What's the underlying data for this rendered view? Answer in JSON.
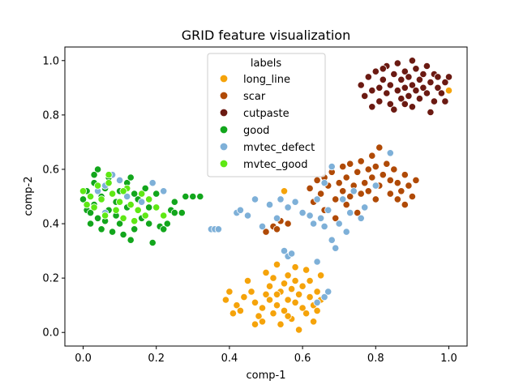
{
  "chart_data": {
    "type": "scatter",
    "title": "GRID feature visualization",
    "xlabel": "comp-1",
    "ylabel": "comp-2",
    "xlim": [
      -0.05,
      1.05
    ],
    "ylim": [
      -0.05,
      1.05
    ],
    "xticks": [
      0.0,
      0.2,
      0.4,
      0.6,
      0.8,
      1.0
    ],
    "xtick_labels": [
      "0.0",
      "0.2",
      "0.4",
      "0.6",
      "0.8",
      "1.0"
    ],
    "yticks": [
      0.0,
      0.2,
      0.4,
      0.6,
      0.8,
      1.0
    ],
    "ytick_labels": [
      "0.0",
      "0.2",
      "0.4",
      "0.6",
      "0.8",
      "1.0"
    ],
    "grid": false,
    "legend": {
      "title": "labels",
      "position": "upper-center"
    },
    "series": [
      {
        "name": "long_line",
        "color": "#f5a30a",
        "points": [
          [
            0.39,
            0.12
          ],
          [
            0.4,
            0.15
          ],
          [
            0.42,
            0.1
          ],
          [
            0.43,
            0.08
          ],
          [
            0.44,
            0.13
          ],
          [
            0.45,
            0.19
          ],
          [
            0.46,
            0.15
          ],
          [
            0.47,
            0.11
          ],
          [
            0.48,
            0.06
          ],
          [
            0.49,
            0.09
          ],
          [
            0.49,
            0.04
          ],
          [
            0.5,
            0.14
          ],
          [
            0.5,
            0.22
          ],
          [
            0.51,
            0.17
          ],
          [
            0.51,
            0.12
          ],
          [
            0.52,
            0.07
          ],
          [
            0.52,
            0.2
          ],
          [
            0.53,
            0.1
          ],
          [
            0.53,
            0.25
          ],
          [
            0.54,
            0.15
          ],
          [
            0.54,
            0.03
          ],
          [
            0.55,
            0.18
          ],
          [
            0.55,
            0.08
          ],
          [
            0.56,
            0.12
          ],
          [
            0.56,
            0.21
          ],
          [
            0.57,
            0.05
          ],
          [
            0.57,
            0.16
          ],
          [
            0.58,
            0.11
          ],
          [
            0.58,
            0.19
          ],
          [
            0.59,
            0.14
          ],
          [
            0.59,
            0.01
          ],
          [
            0.6,
            0.09
          ],
          [
            0.6,
            0.17
          ],
          [
            0.61,
            0.23
          ],
          [
            0.61,
            0.07
          ],
          [
            0.62,
            0.13
          ],
          [
            0.62,
            0.19
          ],
          [
            0.63,
            0.1
          ],
          [
            0.63,
            0.04
          ],
          [
            0.64,
            0.15
          ],
          [
            0.64,
            0.08
          ],
          [
            0.65,
            0.12
          ],
          [
            0.65,
            0.21
          ],
          [
            0.47,
            0.03
          ],
          [
            0.41,
            0.07
          ],
          [
            0.53,
            0.14
          ],
          [
            0.56,
            0.06
          ],
          [
            0.58,
            0.24
          ],
          [
            0.55,
            0.52
          ],
          [
            1.0,
            0.89
          ]
        ]
      },
      {
        "name": "scar",
        "color": "#b04a06",
        "points": [
          [
            0.5,
            0.37
          ],
          [
            0.52,
            0.39
          ],
          [
            0.53,
            0.38
          ],
          [
            0.54,
            0.41
          ],
          [
            0.56,
            0.4
          ],
          [
            0.62,
            0.53
          ],
          [
            0.63,
            0.48
          ],
          [
            0.64,
            0.56
          ],
          [
            0.65,
            0.51
          ],
          [
            0.66,
            0.57
          ],
          [
            0.67,
            0.54
          ],
          [
            0.68,
            0.59
          ],
          [
            0.69,
            0.49
          ],
          [
            0.7,
            0.55
          ],
          [
            0.71,
            0.52
          ],
          [
            0.71,
            0.61
          ],
          [
            0.72,
            0.47
          ],
          [
            0.72,
            0.57
          ],
          [
            0.73,
            0.5
          ],
          [
            0.73,
            0.62
          ],
          [
            0.74,
            0.54
          ],
          [
            0.75,
            0.44
          ],
          [
            0.75,
            0.59
          ],
          [
            0.76,
            0.51
          ],
          [
            0.76,
            0.63
          ],
          [
            0.77,
            0.55
          ],
          [
            0.77,
            0.46
          ],
          [
            0.78,
            0.6
          ],
          [
            0.78,
            0.52
          ],
          [
            0.79,
            0.65
          ],
          [
            0.79,
            0.57
          ],
          [
            0.8,
            0.49
          ],
          [
            0.8,
            0.61
          ],
          [
            0.81,
            0.54
          ],
          [
            0.81,
            0.68
          ],
          [
            0.82,
            0.58
          ],
          [
            0.83,
            0.62
          ],
          [
            0.84,
            0.51
          ],
          [
            0.84,
            0.56
          ],
          [
            0.85,
            0.6
          ],
          [
            0.86,
            0.49
          ],
          [
            0.86,
            0.55
          ],
          [
            0.87,
            0.52
          ],
          [
            0.88,
            0.58
          ],
          [
            0.88,
            0.47
          ],
          [
            0.89,
            0.54
          ],
          [
            0.9,
            0.5
          ],
          [
            0.91,
            0.56
          ],
          [
            0.66,
            0.45
          ],
          [
            0.69,
            0.42
          ]
        ]
      },
      {
        "name": "cutpaste",
        "color": "#6b1a12",
        "points": [
          [
            0.76,
            0.91
          ],
          [
            0.77,
            0.87
          ],
          [
            0.78,
            0.94
          ],
          [
            0.79,
            0.89
          ],
          [
            0.79,
            0.83
          ],
          [
            0.8,
            0.96
          ],
          [
            0.81,
            0.9
          ],
          [
            0.81,
            0.85
          ],
          [
            0.82,
            0.93
          ],
          [
            0.83,
            0.88
          ],
          [
            0.83,
            0.98
          ],
          [
            0.84,
            0.91
          ],
          [
            0.84,
            0.84
          ],
          [
            0.85,
            0.95
          ],
          [
            0.86,
            0.89
          ],
          [
            0.86,
            0.99
          ],
          [
            0.87,
            0.86
          ],
          [
            0.87,
            0.93
          ],
          [
            0.88,
            0.9
          ],
          [
            0.88,
            0.96
          ],
          [
            0.89,
            0.87
          ],
          [
            0.89,
            0.94
          ],
          [
            0.9,
            0.91
          ],
          [
            0.9,
            0.83
          ],
          [
            0.91,
            0.97
          ],
          [
            0.91,
            0.89
          ],
          [
            0.92,
            0.93
          ],
          [
            0.92,
            0.86
          ],
          [
            0.93,
            0.95
          ],
          [
            0.93,
            0.9
          ],
          [
            0.94,
            0.88
          ],
          [
            0.94,
            0.98
          ],
          [
            0.95,
            0.92
          ],
          [
            0.96,
            0.85
          ],
          [
            0.96,
            0.95
          ],
          [
            0.97,
            0.9
          ],
          [
            0.97,
            0.94
          ],
          [
            0.98,
            0.88
          ],
          [
            0.99,
            0.92
          ],
          [
            1.0,
            0.94
          ],
          [
            0.85,
            0.82
          ],
          [
            0.9,
            1.0
          ],
          [
            0.95,
            0.81
          ],
          [
            0.99,
            0.85
          ],
          [
            0.82,
            0.97
          ],
          [
            0.88,
            0.84
          ]
        ]
      },
      {
        "name": "good",
        "color": "#12a61c",
        "points": [
          [
            0.0,
            0.49
          ],
          [
            0.01,
            0.45
          ],
          [
            0.01,
            0.52
          ],
          [
            0.02,
            0.4
          ],
          [
            0.03,
            0.55
          ],
          [
            0.03,
            0.47
          ],
          [
            0.04,
            0.6
          ],
          [
            0.04,
            0.42
          ],
          [
            0.05,
            0.5
          ],
          [
            0.05,
            0.38
          ],
          [
            0.06,
            0.53
          ],
          [
            0.07,
            0.45
          ],
          [
            0.07,
            0.57
          ],
          [
            0.08,
            0.37
          ],
          [
            0.09,
            0.48
          ],
          [
            0.09,
            0.43
          ],
          [
            0.1,
            0.52
          ],
          [
            0.11,
            0.36
          ],
          [
            0.12,
            0.46
          ],
          [
            0.12,
            0.55
          ],
          [
            0.13,
            0.34
          ],
          [
            0.13,
            0.57
          ],
          [
            0.14,
            0.38
          ],
          [
            0.15,
            0.49
          ],
          [
            0.16,
            0.42
          ],
          [
            0.17,
            0.53
          ],
          [
            0.18,
            0.46
          ],
          [
            0.19,
            0.33
          ],
          [
            0.2,
            0.51
          ],
          [
            0.21,
            0.39
          ],
          [
            0.22,
            0.38
          ],
          [
            0.24,
            0.45
          ],
          [
            0.25,
            0.44
          ],
          [
            0.27,
            0.44
          ],
          [
            0.28,
            0.5
          ],
          [
            0.3,
            0.5
          ],
          [
            0.32,
            0.5
          ],
          [
            0.02,
            0.44
          ],
          [
            0.06,
            0.41
          ],
          [
            0.1,
            0.4
          ],
          [
            0.14,
            0.51
          ],
          [
            0.03,
            0.58
          ],
          [
            0.18,
            0.4
          ],
          [
            0.23,
            0.4
          ],
          [
            0.25,
            0.48
          ]
        ]
      },
      {
        "name": "mvtec_defect",
        "color": "#7eb0d8",
        "points": [
          [
            0.35,
            0.38
          ],
          [
            0.36,
            0.38
          ],
          [
            0.37,
            0.38
          ],
          [
            0.42,
            0.44
          ],
          [
            0.43,
            0.45
          ],
          [
            0.45,
            0.43
          ],
          [
            0.47,
            0.49
          ],
          [
            0.49,
            0.39
          ],
          [
            0.51,
            0.47
          ],
          [
            0.53,
            0.42
          ],
          [
            0.54,
            0.49
          ],
          [
            0.56,
            0.46
          ],
          [
            0.58,
            0.48
          ],
          [
            0.6,
            0.44
          ],
          [
            0.62,
            0.43
          ],
          [
            0.63,
            0.4
          ],
          [
            0.64,
            0.49
          ],
          [
            0.65,
            0.42
          ],
          [
            0.66,
            0.55
          ],
          [
            0.66,
            0.39
          ],
          [
            0.67,
            0.45
          ],
          [
            0.68,
            0.34
          ],
          [
            0.68,
            0.61
          ],
          [
            0.69,
            0.31
          ],
          [
            0.7,
            0.4
          ],
          [
            0.71,
            0.49
          ],
          [
            0.72,
            0.37
          ],
          [
            0.73,
            0.44
          ],
          [
            0.74,
            0.52
          ],
          [
            0.76,
            0.42
          ],
          [
            0.77,
            0.46
          ],
          [
            0.8,
            0.54
          ],
          [
            0.84,
            0.66
          ],
          [
            0.55,
            0.3
          ],
          [
            0.56,
            0.28
          ],
          [
            0.57,
            0.29
          ],
          [
            0.64,
            0.26
          ],
          [
            0.64,
            0.11
          ],
          [
            0.66,
            0.13
          ],
          [
            0.67,
            0.15
          ],
          [
            0.02,
            0.5
          ],
          [
            0.04,
            0.52
          ],
          [
            0.06,
            0.54
          ],
          [
            0.08,
            0.58
          ],
          [
            0.1,
            0.56
          ],
          [
            0.16,
            0.48
          ],
          [
            0.19,
            0.55
          ],
          [
            0.22,
            0.52
          ],
          [
            0.06,
            0.44
          ],
          [
            0.12,
            0.5
          ]
        ]
      },
      {
        "name": "mvtec_good",
        "color": "#5ee814",
        "points": [
          [
            0.0,
            0.52
          ],
          [
            0.01,
            0.47
          ],
          [
            0.02,
            0.5
          ],
          [
            0.03,
            0.46
          ],
          [
            0.04,
            0.54
          ],
          [
            0.05,
            0.49
          ],
          [
            0.06,
            0.43
          ],
          [
            0.07,
            0.55
          ],
          [
            0.08,
            0.51
          ],
          [
            0.09,
            0.45
          ],
          [
            0.1,
            0.48
          ],
          [
            0.11,
            0.42
          ],
          [
            0.12,
            0.53
          ],
          [
            0.13,
            0.47
          ],
          [
            0.14,
            0.41
          ],
          [
            0.15,
            0.45
          ],
          [
            0.16,
            0.51
          ],
          [
            0.17,
            0.43
          ],
          [
            0.18,
            0.49
          ],
          [
            0.2,
            0.46
          ],
          [
            0.22,
            0.43
          ],
          [
            0.07,
            0.58
          ],
          [
            0.11,
            0.52
          ]
        ]
      }
    ]
  }
}
